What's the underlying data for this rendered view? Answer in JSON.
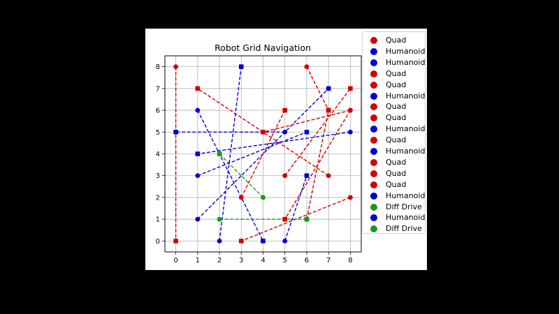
{
  "chart_data": {
    "type": "line",
    "title": "Robot Grid Navigation",
    "xlabel": "",
    "ylabel": "",
    "xlim": [
      -0.5,
      8.5
    ],
    "ylim": [
      -0.5,
      8.5
    ],
    "xticks": [
      0,
      1,
      2,
      3,
      4,
      5,
      6,
      7,
      8
    ],
    "yticks": [
      0,
      1,
      2,
      3,
      4,
      5,
      6,
      7,
      8
    ],
    "grid": true,
    "legend_position": "outside right",
    "line_style": "dashed",
    "colors": {
      "Quad": "#d40000",
      "Humanoid": "#0000d4",
      "Diff Drive": "#169a16"
    },
    "series": [
      {
        "name": "Quad",
        "start": [
          0,
          8
        ],
        "end": [
          0,
          0
        ]
      },
      {
        "name": "Humanoid",
        "start": [
          1,
          6
        ],
        "end": [
          4,
          0
        ]
      },
      {
        "name": "Humanoid",
        "start": [
          1,
          1
        ],
        "end": [
          7,
          7
        ]
      },
      {
        "name": "Quad",
        "start": [
          6,
          8
        ],
        "end": [
          7,
          6
        ]
      },
      {
        "name": "Quad",
        "start": [
          8,
          2
        ],
        "end": [
          3,
          0
        ]
      },
      {
        "name": "Humanoid",
        "start": [
          8,
          5
        ],
        "end": [
          1,
          4
        ]
      },
      {
        "name": "Quad",
        "start": [
          8,
          6
        ],
        "end": [
          5,
          1
        ]
      },
      {
        "name": "Quad",
        "start": [
          7,
          3
        ],
        "end": [
          1,
          7
        ]
      },
      {
        "name": "Humanoid",
        "start": [
          5,
          5
        ],
        "end": [
          0,
          5
        ]
      },
      {
        "name": "Quad",
        "start": [
          5,
          3
        ],
        "end": [
          8,
          7
        ]
      },
      {
        "name": "Humanoid",
        "start": [
          2,
          0
        ],
        "end": [
          3,
          8
        ]
      },
      {
        "name": "Quad",
        "start": [
          3,
          2
        ],
        "end": [
          5,
          6
        ]
      },
      {
        "name": "Quad",
        "start": [
          8,
          6
        ],
        "end": [
          4,
          5
        ]
      },
      {
        "name": "Quad",
        "start": [
          6,
          1
        ],
        "end": [
          7,
          6
        ]
      },
      {
        "name": "Humanoid",
        "start": [
          5,
          0
        ],
        "end": [
          6,
          3
        ]
      },
      {
        "name": "Diff Drive",
        "start": [
          4,
          2
        ],
        "end": [
          2,
          4
        ]
      },
      {
        "name": "Humanoid",
        "start": [
          1,
          3
        ],
        "end": [
          6,
          5
        ]
      },
      {
        "name": "Diff Drive",
        "start": [
          2,
          1
        ],
        "end": [
          6,
          1
        ]
      }
    ]
  }
}
